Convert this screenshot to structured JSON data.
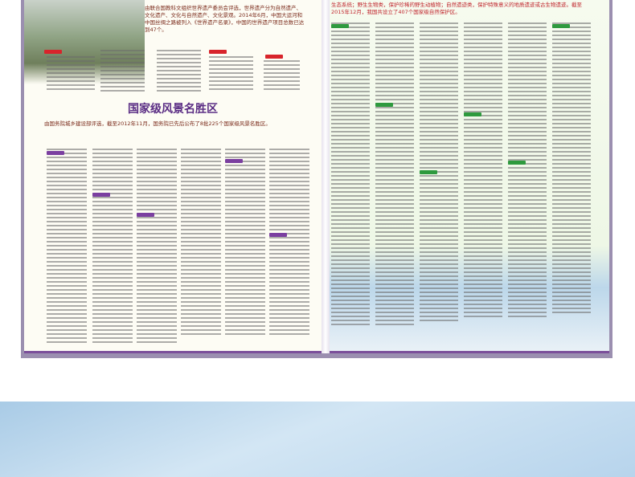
{
  "left_page": {
    "top_text": "由联合国教科文组织世界遗产委员会评选，世界遗产分为自然遗产、文化遗产、文化与自然遗产、文化景观。2014年6月，中国大运河和中国丝绸之路被列入《世界遗产名录》，中国的世界遗产项目总数已达到47个。",
    "heading": "国家级风景名胜区",
    "intro": "由国务院城乡建设部评选，截至2012年11月，国务院已先后公布了8批225个国家级风景名胜区。"
  },
  "right_page": {
    "top_text": "生态系统；野生生物类，保护珍稀的野生动植物；自然遗迹类，保护特殊意义的地质遗迹或古生物遗迹。截至2015年12月，我国共设立了407个国家级自然保护区。"
  }
}
